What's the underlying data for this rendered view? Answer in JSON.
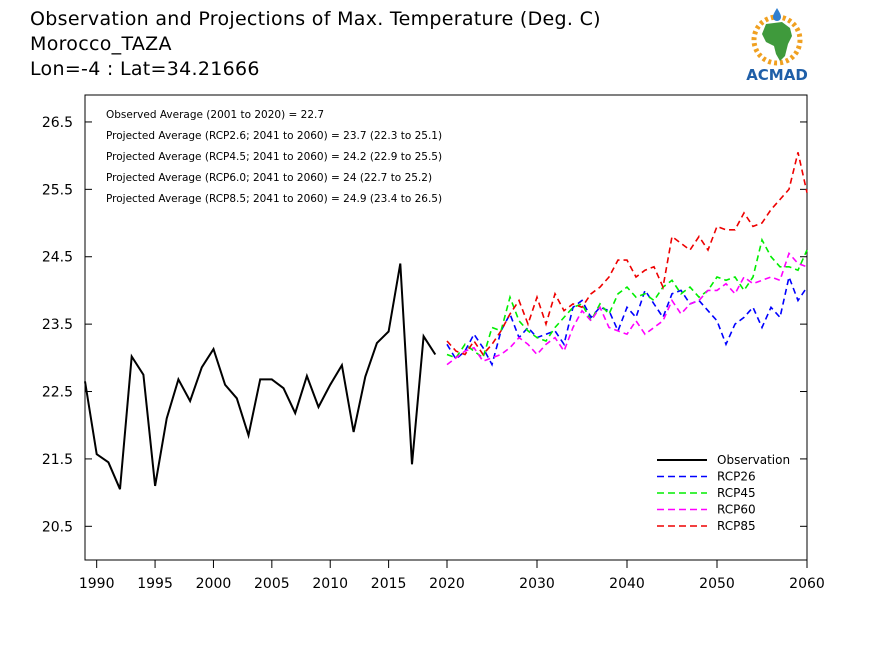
{
  "title": {
    "line1": "Observation and Projections of Max. Temperature (Deg. C)",
    "line2": "Morocco_TAZA",
    "line3": "Lon=-4 : Lat=34.21666"
  },
  "logo": {
    "text": "ACMAD",
    "icon": "africa-map-sun-icon",
    "color_text": "#1f5fa8",
    "color_africa": "#3f9a3c",
    "color_sun": "#f0a020"
  },
  "colors": {
    "Observation": "#000000",
    "RCP26": "#0000ff",
    "RCP45": "#00ee00",
    "RCP60": "#ff00ff",
    "RCP85": "#ee0000"
  },
  "chart_data": {
    "type": "line",
    "xlim": [
      1989,
      2060
    ],
    "ylim": [
      20,
      26.9
    ],
    "xticks": [
      1990,
      1995,
      2000,
      2005,
      2010,
      2015,
      2020,
      2030,
      2040,
      2050,
      2060
    ],
    "yticks": [
      20.5,
      21.5,
      22.5,
      23.5,
      24.5,
      25.5,
      26.5
    ],
    "grid": false,
    "legend_position": "bottom-right",
    "annotations": [
      "Observed Average (2001 to 2020) = 22.7",
      "Projected Average (RCP2.6; 2041 to 2060) = 23.7 (22.3 to 25.1)",
      "Projected Average (RCP4.5; 2041 to 2060) = 24.2 (22.9 to 25.5)",
      "Projected Average (RCP6.0; 2041 to 2060) = 24 (22.7 to 25.2)",
      "Projected Average (RCP8.5; 2041 to 2060) = 24.9 (23.4 to 26.5)"
    ],
    "series": [
      {
        "name": "Observation",
        "x": [
          1989,
          1990,
          1991,
          1992,
          1993,
          1994,
          1995,
          1996,
          1997,
          1998,
          1999,
          2000,
          2001,
          2002,
          2003,
          2004,
          2005,
          2006,
          2007,
          2008,
          2009,
          2010,
          2011,
          2012,
          2013,
          2014,
          2015,
          2016,
          2017,
          2018,
          2019
        ],
        "values": [
          22.65,
          21.57,
          21.45,
          21.05,
          23.02,
          22.75,
          21.1,
          22.1,
          22.68,
          22.36,
          22.86,
          23.13,
          22.6,
          22.4,
          21.85,
          22.68,
          22.68,
          22.55,
          22.18,
          22.73,
          22.27,
          22.6,
          22.89,
          21.9,
          22.72,
          23.22,
          23.39,
          24.4,
          21.42,
          23.32,
          23.05
        ]
      },
      {
        "name": "RCP26",
        "x": [
          2020,
          2021,
          2022,
          2023,
          2024,
          2025,
          2026,
          2027,
          2028,
          2029,
          2030,
          2031,
          2032,
          2033,
          2034,
          2035,
          2036,
          2037,
          2038,
          2039,
          2040,
          2041,
          2042,
          2043,
          2044,
          2045,
          2046,
          2047,
          2048,
          2049,
          2050,
          2051,
          2052,
          2053,
          2054,
          2055,
          2056,
          2057,
          2058,
          2059,
          2060
        ],
        "values": [
          23.2,
          22.98,
          23.1,
          23.35,
          23.15,
          22.9,
          23.4,
          23.65,
          23.3,
          23.45,
          23.3,
          23.35,
          23.4,
          23.2,
          23.75,
          23.85,
          23.6,
          23.75,
          23.7,
          23.4,
          23.75,
          23.6,
          24.0,
          23.8,
          23.6,
          23.95,
          24.0,
          23.8,
          23.85,
          23.7,
          23.55,
          23.2,
          23.5,
          23.6,
          23.75,
          23.45,
          23.75,
          23.6,
          24.2,
          23.85,
          24.05
        ]
      },
      {
        "name": "RCP45",
        "x": [
          2020,
          2021,
          2022,
          2023,
          2024,
          2025,
          2026,
          2027,
          2028,
          2029,
          2030,
          2031,
          2032,
          2033,
          2034,
          2035,
          2036,
          2037,
          2038,
          2039,
          2040,
          2041,
          2042,
          2043,
          2044,
          2045,
          2046,
          2047,
          2048,
          2049,
          2050,
          2051,
          2052,
          2053,
          2054,
          2055,
          2056,
          2057,
          2058,
          2059,
          2060
        ],
        "values": [
          23.05,
          23.0,
          23.2,
          23.1,
          23.0,
          23.45,
          23.4,
          23.9,
          23.55,
          23.4,
          23.3,
          23.25,
          23.45,
          23.6,
          23.75,
          23.8,
          23.55,
          23.8,
          23.65,
          23.95,
          24.05,
          23.9,
          23.95,
          23.85,
          24.05,
          24.15,
          23.95,
          24.05,
          23.9,
          24.0,
          24.2,
          24.15,
          24.2,
          24.0,
          24.2,
          24.75,
          24.5,
          24.35,
          24.35,
          24.3,
          24.6
        ]
      },
      {
        "name": "RCP60",
        "x": [
          2020,
          2021,
          2022,
          2023,
          2024,
          2025,
          2026,
          2027,
          2028,
          2029,
          2030,
          2031,
          2032,
          2033,
          2034,
          2035,
          2036,
          2037,
          2038,
          2039,
          2040,
          2041,
          2042,
          2043,
          2044,
          2045,
          2046,
          2047,
          2048,
          2049,
          2050,
          2051,
          2052,
          2053,
          2054,
          2055,
          2056,
          2057,
          2058,
          2059,
          2060
        ],
        "values": [
          22.9,
          23.0,
          23.1,
          23.15,
          22.95,
          23.0,
          23.05,
          23.15,
          23.3,
          23.2,
          23.05,
          23.2,
          23.3,
          23.1,
          23.45,
          23.7,
          23.55,
          23.75,
          23.45,
          23.4,
          23.35,
          23.55,
          23.35,
          23.45,
          23.55,
          23.85,
          23.65,
          23.8,
          23.85,
          24.0,
          24.0,
          24.1,
          23.95,
          24.2,
          24.1,
          24.15,
          24.2,
          24.15,
          24.55,
          24.4,
          24.35
        ]
      },
      {
        "name": "RCP85",
        "x": [
          2020,
          2021,
          2022,
          2023,
          2024,
          2025,
          2026,
          2027,
          2028,
          2029,
          2030,
          2031,
          2032,
          2033,
          2034,
          2035,
          2036,
          2037,
          2038,
          2039,
          2040,
          2041,
          2042,
          2043,
          2044,
          2045,
          2046,
          2047,
          2048,
          2049,
          2050,
          2051,
          2052,
          2053,
          2054,
          2055,
          2056,
          2057,
          2058,
          2059,
          2060
        ],
        "values": [
          23.25,
          23.1,
          23.05,
          23.25,
          23.05,
          23.2,
          23.4,
          23.65,
          23.85,
          23.5,
          23.9,
          23.5,
          23.95,
          23.7,
          23.8,
          23.75,
          23.95,
          24.05,
          24.2,
          24.45,
          24.45,
          24.2,
          24.3,
          24.35,
          24.05,
          24.8,
          24.7,
          24.6,
          24.8,
          24.6,
          24.95,
          24.9,
          24.9,
          25.15,
          24.95,
          25.0,
          25.2,
          25.35,
          25.5,
          26.05,
          25.45
        ]
      }
    ]
  }
}
